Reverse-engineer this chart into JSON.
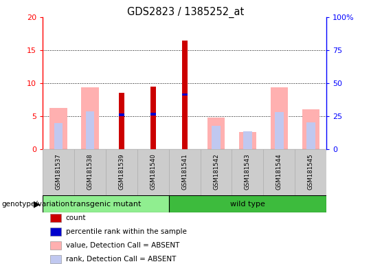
{
  "title": "GDS2823 / 1385252_at",
  "samples": [
    "GSM181537",
    "GSM181538",
    "GSM181539",
    "GSM181540",
    "GSM181541",
    "GSM181542",
    "GSM181543",
    "GSM181544",
    "GSM181545"
  ],
  "count": [
    0,
    0,
    8.5,
    9.5,
    16.5,
    0,
    0,
    0,
    0
  ],
  "percentile_rank": [
    0,
    0,
    5.2,
    5.3,
    8.3,
    0,
    0,
    0,
    0
  ],
  "value_absent": [
    6.2,
    9.4,
    0,
    0,
    0,
    4.8,
    2.6,
    9.4,
    6.0
  ],
  "rank_absent": [
    4.0,
    5.7,
    0,
    0,
    0,
    3.5,
    2.7,
    5.6,
    4.1
  ],
  "groups": [
    {
      "label": "transgenic mutant",
      "start": 0,
      "end": 4,
      "color": "#90ee90"
    },
    {
      "label": "wild type",
      "start": 4,
      "end": 9,
      "color": "#3dbb3d"
    }
  ],
  "ylim_left": [
    0,
    20
  ],
  "ylim_right": [
    0,
    100
  ],
  "yticks_left": [
    0,
    5,
    10,
    15,
    20
  ],
  "yticks_right": [
    0,
    25,
    50,
    75,
    100
  ],
  "ytick_labels_left": [
    "0",
    "5",
    "10",
    "15",
    "20"
  ],
  "ytick_labels_right": [
    "0",
    "25",
    "50",
    "75",
    "100%"
  ],
  "color_count": "#cc0000",
  "color_rank": "#0000cc",
  "color_value_absent": "#ffb0b0",
  "color_rank_absent": "#c0c8f0",
  "legend_items": [
    {
      "color": "#cc0000",
      "label": "count"
    },
    {
      "color": "#0000cc",
      "label": "percentile rank within the sample"
    },
    {
      "color": "#ffb0b0",
      "label": "value, Detection Call = ABSENT"
    },
    {
      "color": "#c0c8f0",
      "label": "rank, Detection Call = ABSENT"
    }
  ]
}
